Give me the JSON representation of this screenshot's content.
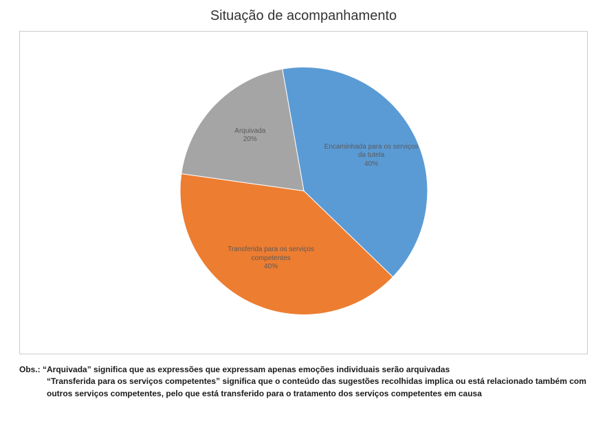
{
  "title": {
    "text": "Situação de acompanhamento",
    "fontsize": 20,
    "color": "#333333"
  },
  "chart": {
    "type": "pie",
    "radius": 180,
    "background_color": "#ffffff",
    "border_color": "#cccccc",
    "start_angle_deg": -10,
    "slices": [
      {
        "label_line1": "Encaminhada para os serviços",
        "label_line2": "da tutela",
        "percent_text": "40%",
        "value": 40,
        "color": "#5b9bd5"
      },
      {
        "label_line1": "Transferida para os serviços",
        "label_line2": "competentes",
        "percent_text": "40%",
        "value": 40,
        "color": "#ed7d31"
      },
      {
        "label_line1": "Arquivada",
        "label_line2": "",
        "percent_text": "20%",
        "value": 20,
        "color": "#a5a5a5"
      }
    ],
    "slice_line_color": "#ffffff",
    "slice_line_width": 1,
    "data_label_fontsize": 10,
    "data_label_color": "#5a5a5a"
  },
  "note": {
    "prefix": "Obs.: ",
    "line1": "“Arquivada” significa que as expressões que expressam apenas emoções individuais serão arquivadas",
    "line2": "“Transferida para os serviços competentes” significa que o conteúdo das sugestões recolhidas implica ou está relacionado também com outros serviços competentes, pelo que está transferido para o tratamento dos serviços competentes em causa",
    "fontsize": 12,
    "color": "#1a1a1a",
    "font_weight": "bold"
  }
}
